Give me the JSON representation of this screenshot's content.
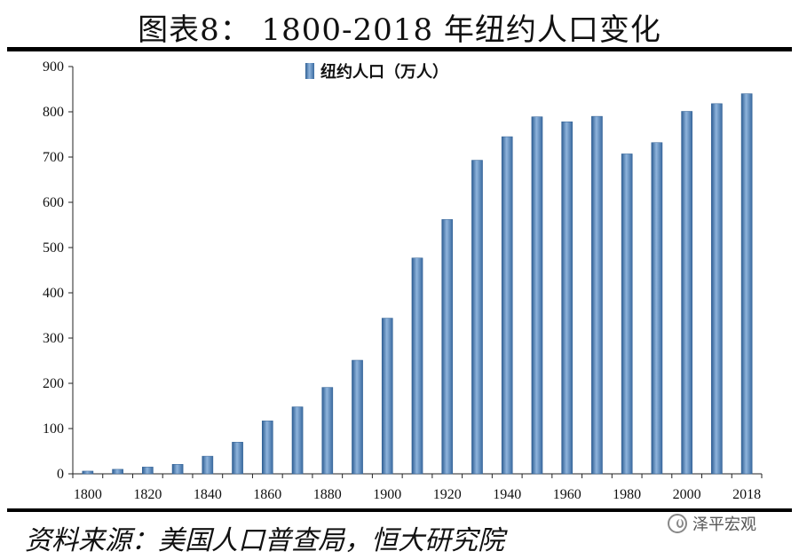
{
  "title": "图表8：  1800-2018 年纽约人口变化",
  "source": "资料来源：美国人口普查局，恒大研究院",
  "watermark": "泽平宏观",
  "colors": {
    "bar": "#4f81bd",
    "bar_dark": "#2e5e93",
    "bar_light": "#8fb4dc"
  },
  "chart_data": {
    "type": "bar",
    "title": "图表8：  1800-2018 年纽约人口变化",
    "legend": "纽约人口（万人）",
    "legend_position": "top-center",
    "xlabel": "",
    "ylabel": "",
    "ylim": [
      0,
      900
    ],
    "yticks": [
      0,
      100,
      200,
      300,
      400,
      500,
      600,
      700,
      800,
      900
    ],
    "xtick_labels": [
      "1800",
      "1820",
      "1840",
      "1860",
      "1880",
      "1900",
      "1920",
      "1940",
      "1960",
      "1980",
      "2000",
      "2018"
    ],
    "categories": [
      "1800",
      "1810",
      "1820",
      "1830",
      "1840",
      "1850",
      "1860",
      "1870",
      "1880",
      "1890",
      "1900",
      "1910",
      "1920",
      "1930",
      "1940",
      "1950",
      "1960",
      "1970",
      "1980",
      "1990",
      "2000",
      "2010",
      "2018"
    ],
    "values": [
      6,
      10,
      15,
      21,
      39,
      70,
      117,
      148,
      191,
      251,
      344,
      477,
      562,
      693,
      745,
      789,
      778,
      790,
      707,
      732,
      801,
      818,
      840
    ],
    "grid": false
  }
}
